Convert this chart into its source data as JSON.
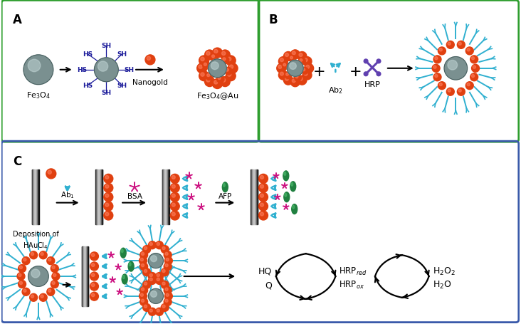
{
  "fig_width": 7.32,
  "fig_height": 4.56,
  "dpi": 100,
  "bg_color": "#ffffff",
  "panel_A_border": "#2e9e2e",
  "panel_B_border": "#2e9e2e",
  "panel_C_border": "#3a5aaa",
  "fe3o4_color": "#7a9090",
  "fe3o4_highlight": "#b8cccc",
  "nano_gold_color": "#e04010",
  "sh_label_color": "#1a1a9a",
  "antibody_color": "#30b0d0",
  "hrp_color": "#6040b0",
  "electrode_dark": "#1a1a1a",
  "electrode_light": "#888888",
  "red_dot_color": "#cc1010",
  "pink_star_color": "#cc1080",
  "green_oval_color": "#208040",
  "text_fe3o4": "Fe$_3$O$_4$",
  "text_fe3o4_au": "Fe$_3$O$_4$@Au",
  "text_nanogold": "Nanogold",
  "text_ab2": "Ab$_2$",
  "text_hrp": "HRP",
  "text_deposition": "Deposition of\nHAuCl$_4$",
  "text_ab1": "Ab$_1$",
  "text_bsa": "BSA",
  "text_afp": "AFP",
  "text_hq": "HQ",
  "text_q": "Q",
  "text_hrp_red": "HRP$_{red}$",
  "text_hrp_ox": "HRP$_{ox}$",
  "text_h2o2": "H$_2$O$_2$",
  "text_h2o": "H$_2$O"
}
